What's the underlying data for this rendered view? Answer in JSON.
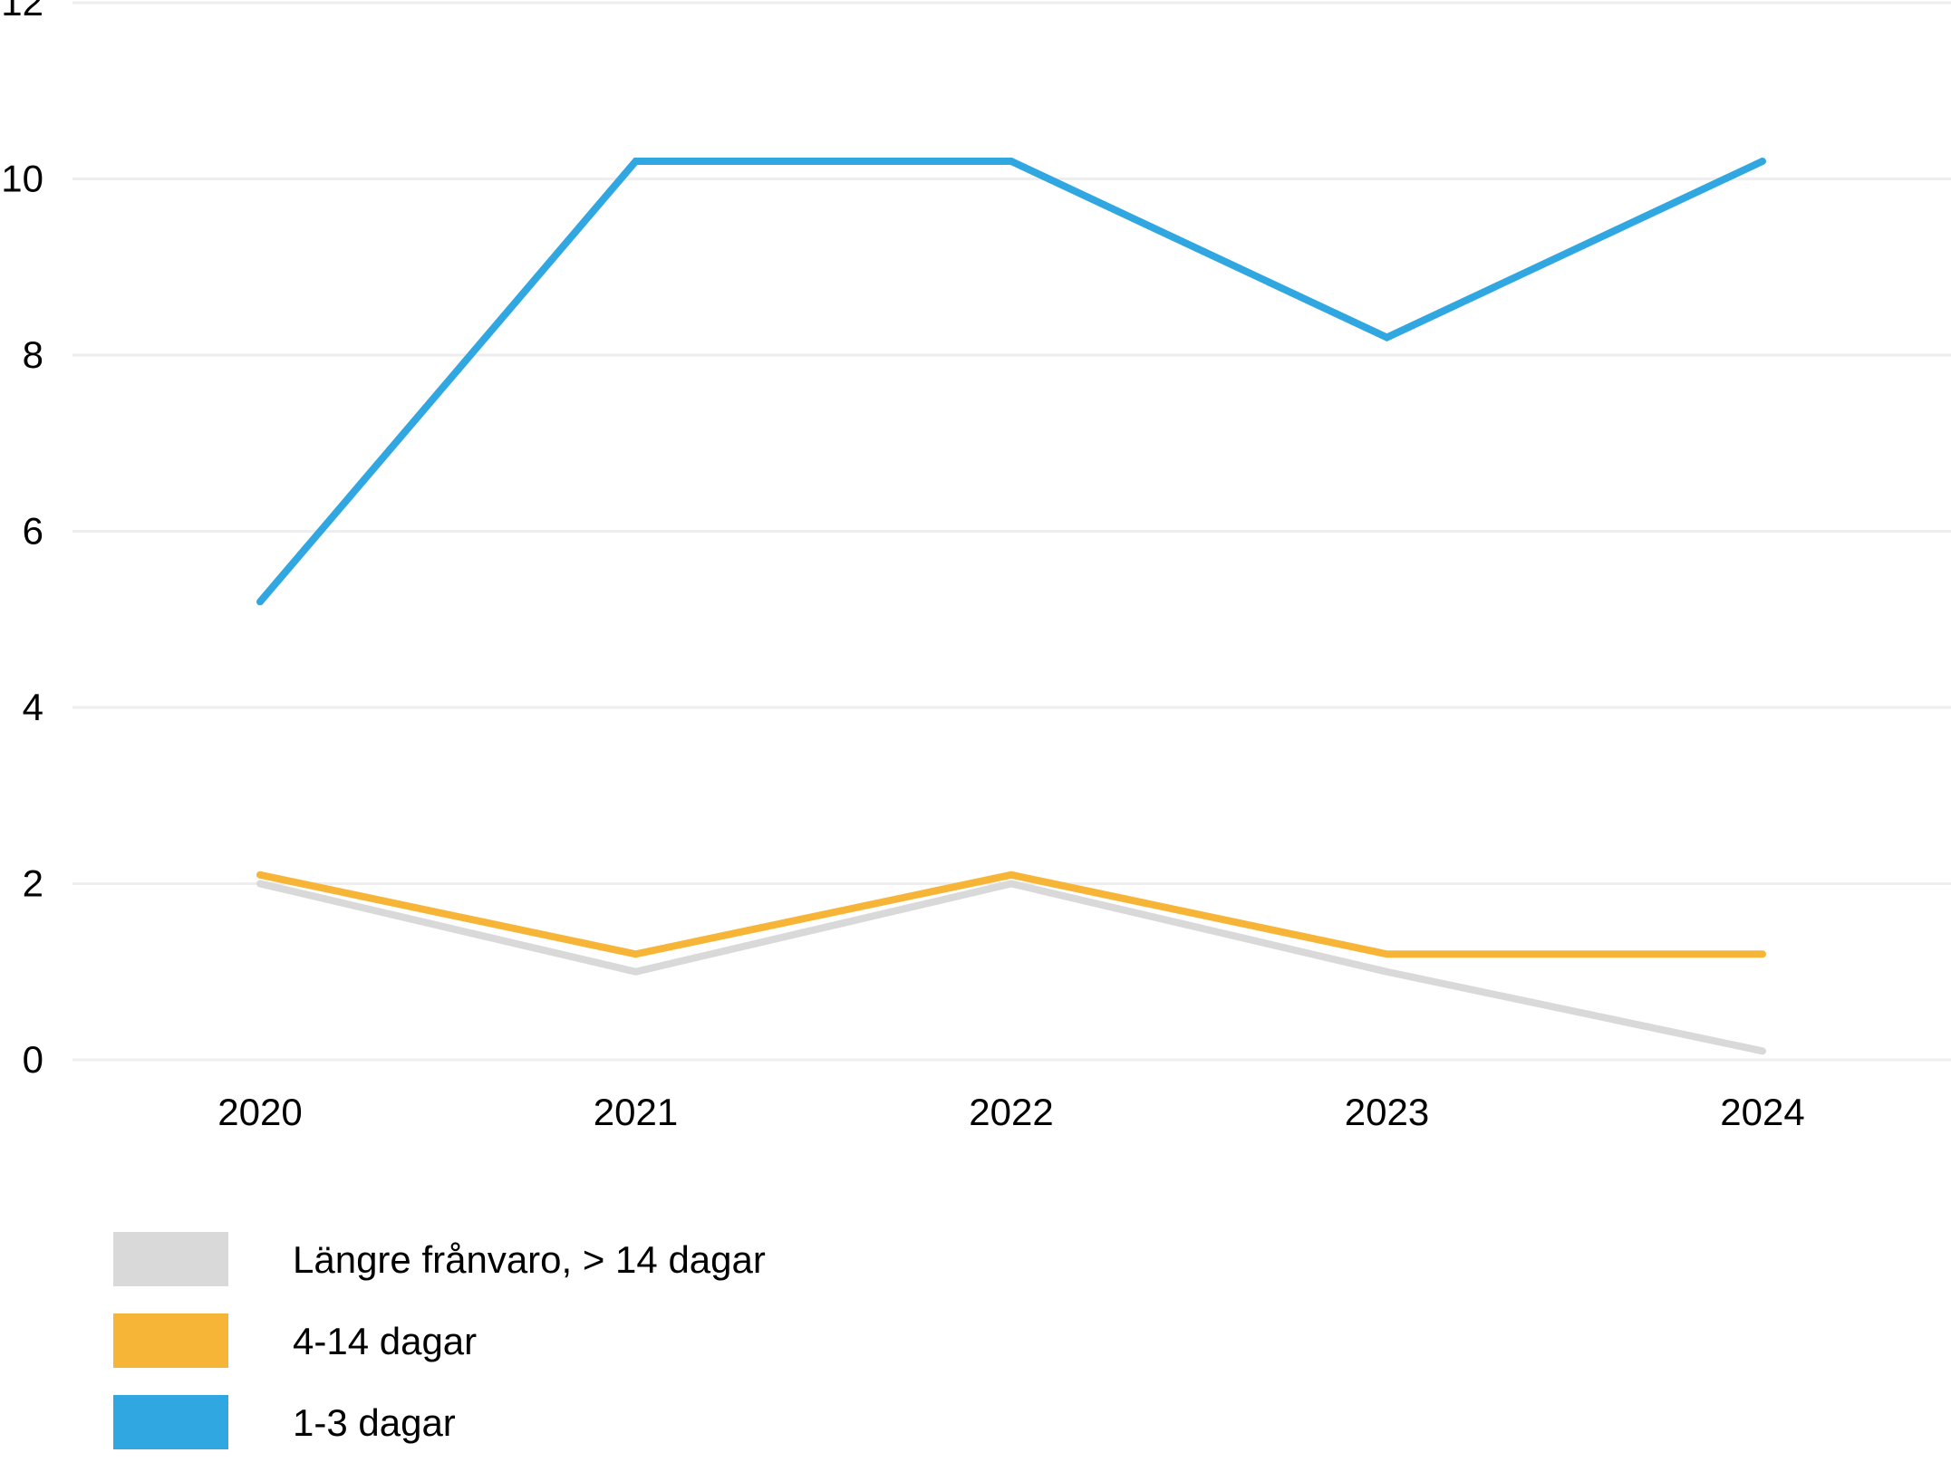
{
  "chart_data": {
    "type": "line",
    "title": "",
    "xlabel": "",
    "ylabel": "",
    "x": [
      "2020",
      "2021",
      "2022",
      "2023",
      "2024"
    ],
    "ylim": [
      0,
      12
    ],
    "yticks": [
      0,
      2,
      4,
      6,
      8,
      10,
      12
    ],
    "grid": true,
    "legend_position": "bottom-left",
    "series": [
      {
        "name": "Längre frånvaro, > 14 dagar",
        "color": "#d9d9d9",
        "values": [
          2,
          1,
          2,
          1,
          0.1
        ]
      },
      {
        "name": "4-14 dagar",
        "color": "#f7b538",
        "values": [
          2.1,
          1.2,
          2.1,
          1.2,
          1.2
        ]
      },
      {
        "name": "1-3 dagar",
        "color": "#30a7e0",
        "values": [
          5.2,
          10.2,
          10.2,
          8.2,
          10.2
        ]
      }
    ]
  }
}
